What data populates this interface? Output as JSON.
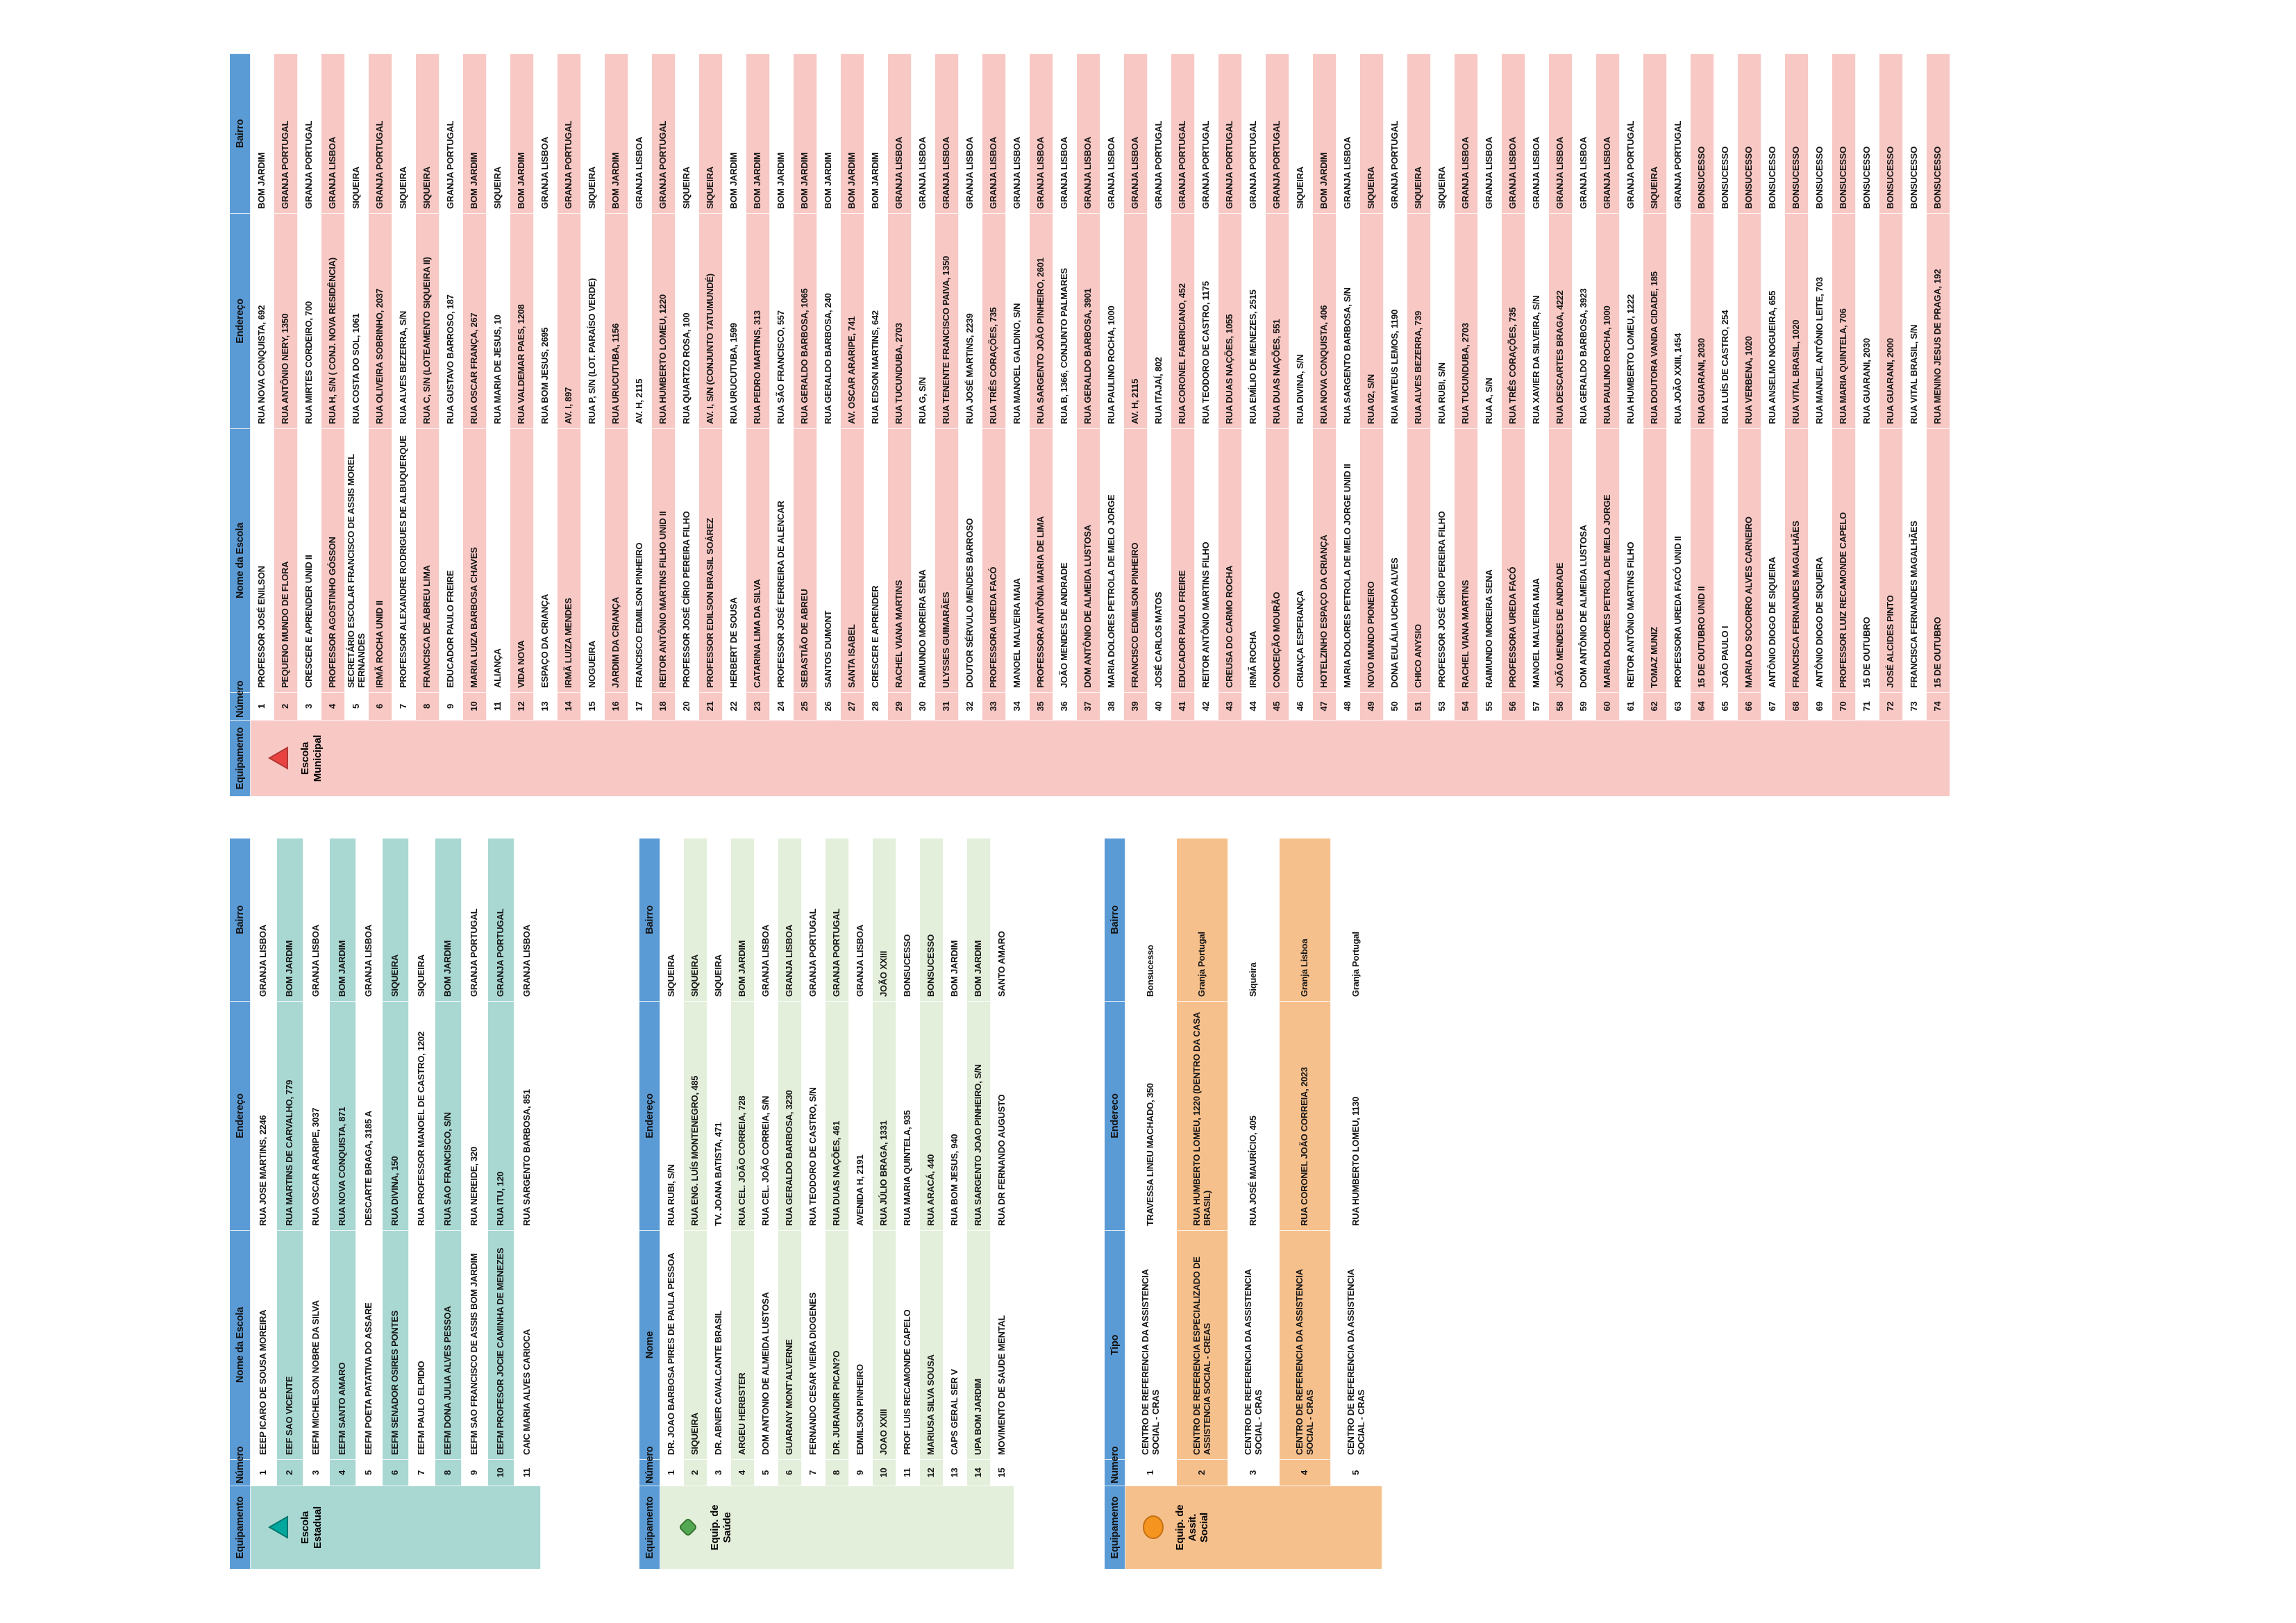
{
  "page": {
    "background": "#ffffff",
    "header_text_color": "#111111",
    "body_text_color": "#151515"
  },
  "tables": [
    {
      "id": "t-municipal",
      "equipamento_label": "Escola Municipal",
      "icon": "red-triangle-icon",
      "icon_shape": "triangle",
      "colors": {
        "header_bg": "#5b9bd5",
        "stripe": "#f8c8c4",
        "icon_fill": "#e84340",
        "icon_stroke": "#b03a37"
      },
      "headers": [
        "Equipamento",
        "Número",
        "Nome da Escola",
        "Endereço",
        "Bairro"
      ],
      "rows": [
        [
          "1",
          "PROFESSOR JOSÉ ENILSON",
          "RUA NOVA CONQUISTA, 692",
          "BOM JARDIM"
        ],
        [
          "2",
          "PEQUENO MUNDO DE FLORA",
          "RUA ANTÔNIO NERY, 1350",
          "GRANJA PORTUGAL"
        ],
        [
          "3",
          "CRESCER E APRENDER UNID II",
          "RUA MIRTES CORDEIRO, 700",
          "GRANJA PORTUGAL"
        ],
        [
          "4",
          "PROFESSOR AGOSTINHO GÓSSON",
          "RUA H, S/N ( CONJ. NOVA RESIDÊNCIA)",
          "GRANJA LISBOA"
        ],
        [
          "5",
          "SECRETÁRIO ESCOLAR FRANCISCO DE ASSIS MOREL FERNANDES",
          "RUA COSTA DO SOL, 1061",
          "SIQUEIRA"
        ],
        [
          "6",
          "IRMÃ ROCHA UNID II",
          "RUA OLIVEIRA SOBRINHO, 2037",
          "GRANJA PORTUGAL"
        ],
        [
          "7",
          "PROFESSOR ALEXANDRE RODRIGUES DE ALBUQUERQUE",
          "RUA ALVES BEZERRA, S/N",
          "SIQUEIRA"
        ],
        [
          "8",
          "FRANCISCA DE ABREU LIMA",
          "RUA C, S/N (LOTEAMENTO SIQUEIRA II)",
          "SIQUEIRA"
        ],
        [
          "9",
          "EDUCADOR PAULO FREIRE",
          "RUA GUSTAVO BARROSO, 187",
          "GRANJA PORTUGAL"
        ],
        [
          "10",
          "MARIA LUIZA BARBOSA CHAVES",
          "RUA OSCAR FRANÇA, 267",
          "BOM JARDIM"
        ],
        [
          "11",
          "ALIANÇA",
          "RUA MARIA DE JESUS, 10",
          "SIQUEIRA"
        ],
        [
          "12",
          "VIDA NOVA",
          "RUA VALDEMAR PAES, 1208",
          "BOM JARDIM"
        ],
        [
          "13",
          "ESPAÇO DA CRIANÇA",
          "RUA BOM JESUS, 2695",
          "GRANJA LISBOA"
        ],
        [
          "14",
          "IRMÃ LUIZA MENDES",
          "AV. I, 897",
          "GRANJA PORTUGAL"
        ],
        [
          "15",
          "NOGUEIRA",
          "RUA P, S/N (LOT. PARAÍSO VERDE)",
          "SIQUEIRA"
        ],
        [
          "16",
          "JARDIM DA CRIANÇA",
          "RUA URUCUTUBA, 1156",
          "BOM JARDIM"
        ],
        [
          "17",
          "FRANCISCO EDMILSON PINHEIRO",
          "AV. H, 2115",
          "GRANJA LISBOA"
        ],
        [
          "18",
          "REITOR ANTÔNIO MARTINS FILHO UNID II",
          "RUA HUMBERTO LOMEU, 1220",
          "GRANJA PORTUGAL"
        ],
        [
          "20",
          "PROFESSOR JOSÉ CÍRIO PEREIRA FILHO",
          "RUA QUARTZO ROSA, 100",
          "SIQUEIRA"
        ],
        [
          "21",
          "PROFESSOR EDILSON BRASIL SOÁREZ",
          "AV. I, S/N (CONJUNTO TATUMUNDÉ)",
          "SIQUEIRA"
        ],
        [
          "22",
          "HERBERT DE SOUSA",
          "RUA URUCUTUBA, 1599",
          "BOM JARDIM"
        ],
        [
          "23",
          "CATARINA LIMA DA SILVA",
          "RUA PEDRO MARTINS, 313",
          "BOM JARDIM"
        ],
        [
          "24",
          "PROFESSOR JOSÉ FERREIRA DE ALENCAR",
          "RUA SÃO FRANCISCO, 557",
          "BOM JARDIM"
        ],
        [
          "25",
          "SEBASTIÃO DE ABREU",
          "RUA GERALDO BARBOSA, 1065",
          "BOM JARDIM"
        ],
        [
          "26",
          "SANTOS DUMONT",
          "RUA GERALDO BARBOSA, 240",
          "BOM JARDIM"
        ],
        [
          "27",
          "SANTA ISABEL",
          "AV. OSCAR ARARIPE, 741",
          "BOM JARDIM"
        ],
        [
          "28",
          "CRESCER E APRENDER",
          "RUA EDSON MARTINS, 642",
          "BOM JARDIM"
        ],
        [
          "29",
          "RACHEL VIANA MARTINS",
          "RUA TUCUNDUBA, 2703",
          "GRANJA LISBOA"
        ],
        [
          "30",
          "RAIMUNDO MOREIRA SENA",
          "RUA G, S/N",
          "GRANJA LISBOA"
        ],
        [
          "31",
          "ULYSSES GUIMARÃES",
          "RUA TENENTE FRANCISCO PAIVA, 1350",
          "GRANJA LISBOA"
        ],
        [
          "32",
          "DOUTOR SÉRVULO MENDES BARROSO",
          "RUA JOSÉ MARTINS, 2239",
          "GRANJA LISBOA"
        ],
        [
          "33",
          "PROFESSORA UREDA FACÓ",
          "RUA TRÊS CORAÇÕES, 735",
          "GRANJA LISBOA"
        ],
        [
          "34",
          "MANOEL MALVEIRA MAIA",
          "RUA MANOEL GALDINO, S/N",
          "GRANJA LISBOA"
        ],
        [
          "35",
          "PROFESSORA ANTÔNIA MARIA DE LIMA",
          "RUA SARGENTO JOÃO PINHEIRO, 2601",
          "GRANJA LISBOA"
        ],
        [
          "36",
          "JOÃO MENDES DE ANDRADE",
          "RUA B, 1366, CONJUNTO PALMARES",
          "GRANJA LISBOA"
        ],
        [
          "37",
          "DOM ANTÔNIO DE ALMEIDA LUSTOSA",
          "RUA GERALDO BARBOSA, 3901",
          "GRANJA LISBOA"
        ],
        [
          "38",
          "MARIA DOLORES PETROLA DE MELO JORGE",
          "RUA PAULINO ROCHA, 1000",
          "GRANJA LISBOA"
        ],
        [
          "39",
          "FRANCISCO EDMILSON PINHEIRO",
          "AV. H, 2115",
          "GRANJA LISBOA"
        ],
        [
          "40",
          "JOSÉ CARLOS MATOS",
          "RUA ITAJAÍ, 802",
          "GRANJA PORTUGAL"
        ],
        [
          "41",
          "EDUCADOR PAULO FREIRE",
          "RUA CORONEL FABRICIANO, 452",
          "GRANJA PORTUGAL"
        ],
        [
          "42",
          "REITOR ANTÔNIO MARTINS FILHO",
          "RUA TEODORO DE CASTRO, 1175",
          "GRANJA PORTUGAL"
        ],
        [
          "43",
          "CREUSA DO CARMO ROCHA",
          "RUA DUAS NAÇÕES, 1055",
          "GRANJA PORTUGAL"
        ],
        [
          "44",
          "IRMÃ ROCHA",
          "RUA EMÍLIO DE MENEZES, 2515",
          "GRANJA PORTUGAL"
        ],
        [
          "45",
          "CONCEIÇÃO MOURÃO",
          "RUA DUAS NAÇÕES, 551",
          "GRANJA PORTUGAL"
        ],
        [
          "46",
          "CRIANÇA ESPERANÇA",
          "RUA DIVINA, S/N",
          "SIQUEIRA"
        ],
        [
          "47",
          "HOTELZINHO ESPAÇO DA CRIANÇA",
          "RUA NOVA CONQUISTA, 406",
          "BOM JARDIM"
        ],
        [
          "48",
          "MARIA DOLORES PETROLA DE MELO JORGE UNID II",
          "RUA SARGENTO BARBOSA, S/N",
          "GRANJA LISBOA"
        ],
        [
          "49",
          "NOVO MUNDO PIONEIRO",
          "RUA 02, S/N",
          "SIQUEIRA"
        ],
        [
          "50",
          "DONA EULÁLIA UCHOA ALVES",
          "RUA MATEUS LEMOS, 1190",
          "GRANJA PORTUGAL"
        ],
        [
          "51",
          "CHICO ANYSIO",
          "RUA ALVES BEZERRA, 739",
          "SIQUEIRA"
        ],
        [
          "53",
          "PROFESSOR JOSÉ CÍRIO PEREIRA FILHO",
          "RUA RUBI, S/N",
          "SIQUEIRA"
        ],
        [
          "54",
          "RACHEL VIANA MARTINS",
          "RUA TUCUNDUBA, 2703",
          "GRANJA LISBOA"
        ],
        [
          "55",
          "RAIMUNDO MOREIRA SENA",
          "RUA A, S/N",
          "GRANJA LISBOA"
        ],
        [
          "56",
          "PROFESSORA UREDA FACÓ",
          "RUA TRÊS CORAÇÕES, 735",
          "GRANJA LISBOA"
        ],
        [
          "57",
          "MANOEL MALVEIRA MAIA",
          "RUA XAVIER DA SILVEIRA, S/N",
          "GRANJA LISBOA"
        ],
        [
          "58",
          "JOÃO MENDES DE ANDRADE",
          "RUA DESCARTES BRAGA, 4222",
          "GRANJA LISBOA"
        ],
        [
          "59",
          "DOM ANTÔNIO DE ALMEIDA LUSTOSA",
          "RUA GERALDO BARBOSA, 3923",
          "GRANJA LISBOA"
        ],
        [
          "60",
          "MARIA DOLORES PETROLA DE MELO JORGE",
          "RUA PAULINO ROCHA, 1000",
          "GRANJA LISBOA"
        ],
        [
          "61",
          "REITOR ANTÔNIO MARTINS FILHO",
          "RUA HUMBERTO LOMEU, 1222",
          "GRANJA PORTUGAL"
        ],
        [
          "62",
          "TOMAZ MUNIZ",
          "RUA DOUTORA VANDA CIDADE, 185",
          "SIQUEIRA"
        ],
        [
          "63",
          "PROFESSORA UREDA FACÓ UNID II",
          "RUA JOÃO XXIII, 1454",
          "GRANJA PORTUGAL"
        ],
        [
          "64",
          "15 DE OUTUBRO UNID II",
          "RUA GUARANI, 2030",
          "BONSUCESSO"
        ],
        [
          "65",
          "JOÃO PAULO I",
          "RUA LUÍS DE CASTRO, 254",
          "BONSUCESSO"
        ],
        [
          "66",
          "MARIA DO SOCORRO ALVES CARNEIRO",
          "RUA VERBENA, 1020",
          "BONSUCESSO"
        ],
        [
          "67",
          "ANTÔNIO DIOGO DE SIQUEIRA",
          "RUA ANSELMO NOGUEIRA, 655",
          "BONSUCESSO"
        ],
        [
          "68",
          "FRANCISCA FERNANDES MAGALHÃES",
          "RUA VITAL BRASIL, 1020",
          "BONSUCESSO"
        ],
        [
          "69",
          "ANTÔNIO DIOGO DE SIQUEIRA",
          "RUA MANUEL ANTÔNIO LEITE, 703",
          "BONSUCESSO"
        ],
        [
          "70",
          "PROFESSOR LUIZ RECAMONDE CAPELO",
          "RUA MARIA QUINTELA, 706",
          "BONSUCESSO"
        ],
        [
          "71",
          "15 DE OUTUBRO",
          "RUA GUARANI, 2030",
          "BONSUCESSO"
        ],
        [
          "72",
          "JOSÉ ALCIDES PINTO",
          "RUA GUARANI, 2000",
          "BONSUCESSO"
        ],
        [
          "73",
          "FRANCISCA FERNANDES MAGALHÃES",
          "RUA VITAL BRASIL, S/N",
          "BONSUCESSO"
        ],
        [
          "74",
          "15 DE OUTUBRO",
          "RUA MENINO JESUS DE PRAGA, 192",
          "BONSUCESSO"
        ]
      ]
    },
    {
      "id": "t-estadual",
      "equipamento_label": "Escola Estadual",
      "icon": "teal-triangle-icon",
      "icon_shape": "triangle",
      "colors": {
        "header_bg": "#5b9bd5",
        "stripe": "#a9d8d3",
        "icon_fill": "#00a79d",
        "icon_stroke": "#00776f"
      },
      "headers": [
        "Equipamento",
        "Número",
        "Nome da Escola",
        "Endereço",
        "Bairro"
      ],
      "rows": [
        [
          "1",
          "EEEP ICARO DE SOUSA MOREIRA",
          "RUA JOSE MARTINS, 2246",
          "GRANJA LISBOA"
        ],
        [
          "2",
          "EEF SAO VICENTE",
          "RUA MARTINS DE CARVALHO, 779",
          "BOM JARDIM"
        ],
        [
          "3",
          "EEFM MICHELSON NOBRE DA SILVA",
          "RUA OSCAR ARARIPE, 3037",
          "GRANJA LISBOA"
        ],
        [
          "4",
          "EEFM SANTO AMARO",
          "RUA NOVA CONQUISTA, 871",
          "BOM JARDIM"
        ],
        [
          "5",
          "EEFM POETA PATATIVA DO ASSARE",
          "DESCARTE BRAGA, 3185 A",
          "GRANJA LISBOA"
        ],
        [
          "6",
          "EEFM SENADOR OSIRES PONTES",
          "RUA DIVINA, 150",
          "SIQUEIRA"
        ],
        [
          "7",
          "EEFM PAULO ELPIDIO",
          "RUA PROFESSOR MANOEL DE CASTRO, 1202",
          "SIQUEIRA"
        ],
        [
          "8",
          "EEFM DONA JULIA ALVES PESSOA",
          "RUA SAO FRANCISCO, S/N",
          "BOM JARDIM"
        ],
        [
          "9",
          "EEFM SAO FRANCISCO DE ASSIS BOM JARDIM",
          "RUA NEREIDE, 320",
          "GRANJA PORTUGAL"
        ],
        [
          "10",
          "EEFM PROFESOR JOCIE CAMINHA DE MENEZES",
          "RUA ITU, 120",
          "GRANJA PORTUGAL"
        ],
        [
          "11",
          "CAIC MARIA ALVES CARIOCA",
          "RUA SARGENTO BARBOSA, 851",
          "GRANJA LISBOA"
        ]
      ]
    },
    {
      "id": "t-saude",
      "equipamento_label": "Equip. de Saúde",
      "icon": "green-diamond-icon",
      "icon_shape": "diamond",
      "colors": {
        "header_bg": "#5b9bd5",
        "stripe": "#e4efdb",
        "icon_fill": "#55a853",
        "icon_stroke": "#35742f"
      },
      "headers": [
        "Equipamento",
        "Número",
        "Nome",
        "Endereço",
        "Bairro"
      ],
      "rows": [
        [
          "1",
          "DR. JOAO BARBOSA PIRES DE PAULA PESSOA",
          "RUA RUBI, S/N",
          "SIQUEIRA"
        ],
        [
          "2",
          "SIQUEIRA",
          "RUA ENG. LUÍS MONTENEGRO, 485",
          "SIQUEIRA"
        ],
        [
          "3",
          "DR. ABNER CAVALCANTE BRASIL",
          "TV. JOANA BATISTA, 471",
          "SIQUEIRA"
        ],
        [
          "4",
          "ARGEU HERBSTER",
          "RUA CEL. JOÃO CORREIA, 728",
          "BOM JARDIM"
        ],
        [
          "5",
          "DOM ANTONIO DE ALMEIDA LUSTOSA",
          "RUA CEL. JOÃO CORREIA, S/N",
          "GRANJA LISBOA"
        ],
        [
          "6",
          "GUARANY MONT'ALVERNE",
          "RUA GERALDO BARBOSA, 3230",
          "GRANJA LISBOA"
        ],
        [
          "7",
          "FERNANDO CESAR VIEIRA DIOGENES",
          "RUA TEODORO DE CASTRO, S/N",
          "GRANJA PORTUGAL"
        ],
        [
          "8",
          "DR. JURANDIR PICAN?O",
          "RUA DUAS NAÇÕES, 461",
          "GRANJA PORTUGAL"
        ],
        [
          "9",
          "EDMILSON PINHEIRO",
          "AVENIDA H, 2191",
          "GRANJA LISBOA"
        ],
        [
          "10",
          "JOAO XXIII",
          "RUA JÚLIO BRAGA, 1331",
          "JOÃO XXIII"
        ],
        [
          "11",
          "PROF LUIS RECAMONDE CAPELO",
          "RUA MARIA QUINTELA, 935",
          "BONSUCESSO"
        ],
        [
          "12",
          "MARIUSA SILVA SOUSA",
          "RUA ARACÁ, 440",
          "BONSUCESSO"
        ],
        [
          "13",
          "CAPS GERAL SER V",
          "RUA BOM JESUS, 940",
          "BOM JARDIM"
        ],
        [
          "14",
          "UPA BOM JARDIM",
          "RUA SARGENTO JOAO PINHEIRO, S/N",
          "BOM JARDIM"
        ],
        [
          "15",
          "MOVIMENTO DE SAUDE MENTAL",
          "RUA DR FERNANDO AUGUSTO",
          "SANTO AMARO"
        ]
      ]
    },
    {
      "id": "t-social",
      "equipamento_label": "Equip. de Assit. Social",
      "icon": "orange-circle-icon",
      "icon_shape": "circle",
      "colors": {
        "header_bg": "#5b9bd5",
        "stripe": "#f6c08d",
        "icon_fill": "#f5941f",
        "icon_stroke": "#c47113"
      },
      "headers": [
        "Equipamento",
        "Numero",
        "Tipo",
        "Endereco",
        "Bairro"
      ],
      "rows": [
        [
          "1",
          "CENTRO DE REFERENCIA DA ASSISTENCIA SOCIAL - CRAS",
          "TRAVESSA LINEU MACHADO, 350",
          "Bonsucesso"
        ],
        [
          "2",
          "CENTRO DE REFERENCIA ESPECIALIZADO DE ASSISTENCIA SOCIAL - CREAS",
          "RUA HUMBERTO LOMEU, 1220 (DENTRO DA CASA BRASIL)",
          "Granja Portugal"
        ],
        [
          "3",
          "CENTRO DE REFERENCIA DA ASSISTENCIA SOCIAL - CRAS",
          "RUA JOSÉ MAURÍCIO, 405",
          "Siqueira"
        ],
        [
          "4",
          "CENTRO DE REFERENCIA DA ASSISTENCIA SOCIAL - CRAS",
          "RUA CORONEL JOÃO CORREIA, 2023",
          "Granja Lisboa"
        ],
        [
          "5",
          "CENTRO DE REFERENCIA DA ASSISTENCIA SOCIAL - CRAS",
          "RUA HUMBERTO LOMEU, 1130",
          "Granja Portugal"
        ]
      ]
    }
  ]
}
